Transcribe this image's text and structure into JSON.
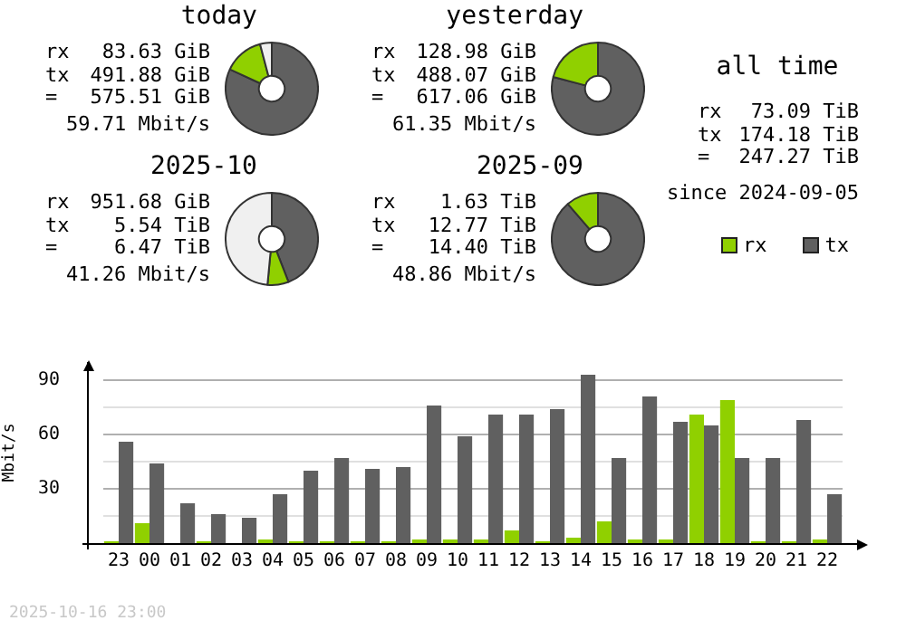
{
  "chart_data": [
    {
      "type": "donut",
      "title": "today",
      "categories": [
        null,
        null,
        null
      ],
      "values": [
        81.9,
        14.0,
        4.1
      ],
      "colors": [
        "#606060",
        "#90d000",
        "#f0f0f0"
      ],
      "annotations": [
        "rx",
        "83.63 GiB",
        "tx",
        "491.88 GiB",
        "=",
        "575.51 GiB",
        "59.71 Mbit/s"
      ]
    },
    {
      "type": "donut",
      "title": "yesterday",
      "categories": [
        null,
        null
      ],
      "values": [
        79.1,
        20.9
      ],
      "colors": [
        "#606060",
        "#90d000"
      ],
      "annotations": [
        "rx",
        "128.98 GiB",
        "tx",
        "488.07 GiB",
        "=",
        "617.06 GiB",
        "61.35 Mbit/s"
      ]
    },
    {
      "type": "donut",
      "title": "2025-10",
      "categories": [
        null,
        null,
        null
      ],
      "values": [
        44.1,
        7.4,
        48.5
      ],
      "colors": [
        "#606060",
        "#90d000",
        "#f0f0f0"
      ],
      "annotations": [
        "rx",
        "951.68 GiB",
        "tx",
        "5.54 TiB",
        "=",
        "6.47 TiB",
        "41.26 Mbit/s"
      ]
    },
    {
      "type": "donut",
      "title": "2025-09",
      "categories": [
        null,
        null
      ],
      "values": [
        88.7,
        11.3
      ],
      "colors": [
        "#606060",
        "#90d000"
      ],
      "annotations": [
        "rx",
        "1.63 TiB",
        "tx",
        "12.77 TiB",
        "=",
        "14.40 TiB",
        "48.86 Mbit/s"
      ]
    },
    {
      "type": "other",
      "title": "all time",
      "annotations": [
        "rx",
        "73.09 TiB",
        "tx",
        "174.18 TiB",
        "=",
        "247.27 TiB",
        "since 2024-09-05"
      ]
    },
    {
      "type": "bar",
      "categories": [
        "23",
        "00",
        "01",
        "02",
        "03",
        "04",
        "05",
        "06",
        "07",
        "08",
        "09",
        "10",
        "11",
        "12",
        "13",
        "14",
        "15",
        "16",
        "17",
        "18",
        "19",
        "20",
        "21",
        "22"
      ],
      "ylabel": "Mbit/s",
      "ylim": [
        0,
        100
      ],
      "yticks": [
        {
          "value": 15,
          "label": null
        },
        30,
        {
          "value": 45,
          "label": null
        },
        60,
        {
          "value": 75,
          "label": null
        },
        90
      ],
      "grid": "y",
      "legend": "top right",
      "series": [
        {
          "name": "rx",
          "color": "#90d000",
          "values": [
            1,
            11,
            0,
            1,
            0,
            2,
            1,
            1,
            1,
            1,
            2,
            2,
            2,
            7,
            1,
            3,
            12,
            2,
            2,
            71,
            79,
            1,
            1,
            2
          ]
        },
        {
          "name": "tx",
          "color": "#606060",
          "values": [
            56,
            44,
            22,
            16,
            14,
            27,
            40,
            47,
            41,
            42,
            76,
            59,
            71,
            71,
            74,
            93,
            47,
            81,
            67,
            65,
            47,
            47,
            68,
            27
          ]
        }
      ],
      "annotations": [
        "2025-10-16 23:00"
      ]
    }
  ]
}
